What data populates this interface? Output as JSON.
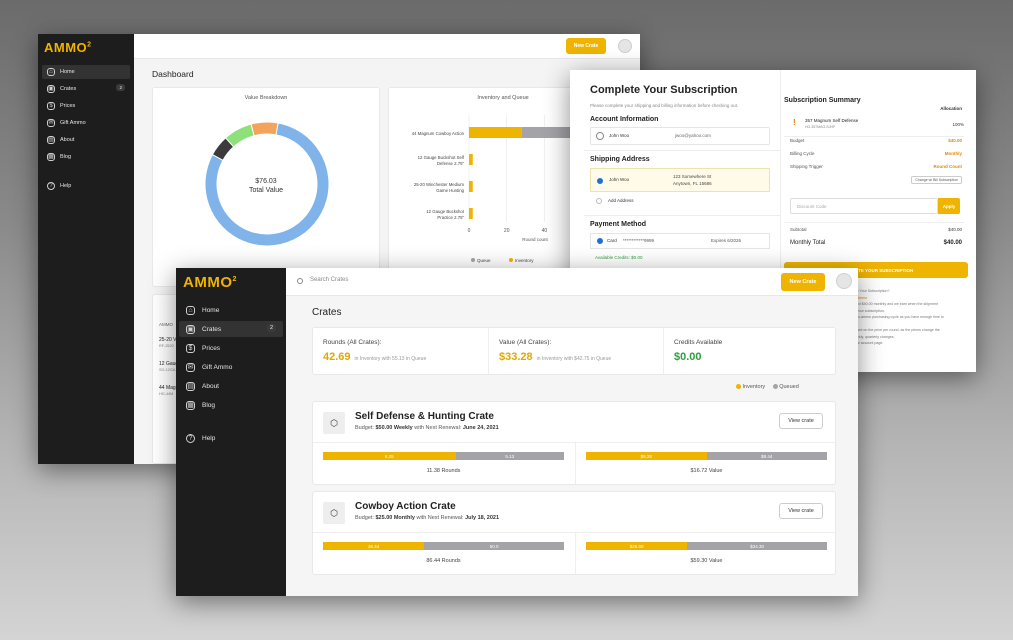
{
  "brand": "AMMO",
  "brand_mark": "2",
  "dashboard": {
    "title": "Dashboard",
    "sidebar": [
      {
        "label": "Home",
        "icon": "home-icon",
        "active": true
      },
      {
        "label": "Crates",
        "icon": "crate-icon",
        "badge": "2"
      },
      {
        "label": "Prices",
        "icon": "dollar-icon"
      },
      {
        "label": "Gift Ammo",
        "icon": "gift-icon"
      },
      {
        "label": "About",
        "icon": "book-icon"
      },
      {
        "label": "Blog",
        "icon": "news-icon"
      },
      {
        "label": "Help",
        "icon": "help-icon"
      }
    ],
    "new_crate": "New Crate",
    "value_breakdown": {
      "title": "Value Breakdown",
      "amount": "$76.03",
      "caption": "Total Value",
      "slices": [
        {
          "value": 0.8,
          "color": "#7fb3ea"
        },
        {
          "value": 0.055,
          "color": "#3b3b3b"
        },
        {
          "value": 0.075,
          "color": "#8ee07a"
        },
        {
          "value": 0.07,
          "color": "#f3a35a"
        }
      ]
    },
    "inventory_queue": {
      "title": "Inventory and Queue",
      "categories": [
        "44 Magnum Cowboy Action",
        "12 Gauge Buckshot Self Defense 2.75\"",
        "25-20 Winchester Medium Game Hunting",
        "12 Gauge Buckshot Practice 2.75\""
      ],
      "x_ticks": [
        "0",
        "20",
        "40",
        "60"
      ],
      "xlabel": "Round count",
      "legend": [
        "Queue",
        "Inventory"
      ]
    },
    "small_table": {
      "header": "AMMO",
      "rows": [
        {
          "name": "25-20 V",
          "sub": "RF-2520"
        },
        {
          "name": "12 Gaug",
          "sub": "SG-12GA"
        },
        {
          "name": "44 Mag",
          "sub": "HG-44M"
        }
      ]
    }
  },
  "subscription": {
    "title": "Complete Your Subscription",
    "subtitle": "Please complete your shipping and billing information before checking out.",
    "account_heading": "Account Information",
    "account_name": "John Woo",
    "account_email": "jwoo@yahoo.com",
    "shipping_heading": "Shipping Address",
    "ship_name": "John Woo",
    "ship_addr1": "123 Somewhere St",
    "ship_addr2": "Anytown, FL 15686",
    "add_address": "Add Address",
    "payment_heading": "Payment Method",
    "card_label": "Card",
    "card_number": "************9999",
    "card_expiry": "Expires 6/2026",
    "available_credits": "Available Credits: $0.00",
    "summary": {
      "title": "Subscription Summary",
      "allocation_label": "Allocation",
      "item_name": "357 Magnum Self Defense",
      "item_sub": "HG-357MAG-SJHP",
      "item_alloc": "100%",
      "rows": [
        {
          "label": "Budget",
          "value": "$40.00"
        },
        {
          "label": "Billing Cycle",
          "value": "Monthly"
        },
        {
          "label": "Shipping Trigger",
          "value": "Round Count"
        }
      ],
      "change_btn": "Change w/ Bill Subscription",
      "discount_placeholder": "Discount Code",
      "apply": "Apply",
      "subtotal_label": "Subtotal",
      "subtotal_value": "$40.00",
      "monthly_label": "Monthly Total",
      "monthly_value": "$40.00",
      "cta": "COMPLETE YOUR SUBSCRIPTION",
      "note_lines": [
        "...complete Your Subscription?",
        "...ch Auto Ammo",
        "...processed $40.00 monthly and we earn when the shipment",
        "...change your subscription.",
        "...each auto-ammo purchasing cycle as you have enough time to",
        "...ted",
        "...ed is based on the price per round, as the prices change the",
        "...ly, bi-weekly, quarterly changes.",
        "...us at your account page."
      ]
    }
  },
  "crates_page": {
    "search_placeholder": "Search Crates",
    "new_crate": "New Crate",
    "title": "Crates",
    "sidebar": [
      {
        "label": "Home",
        "icon": "home-icon"
      },
      {
        "label": "Crates",
        "icon": "crate-icon",
        "active": true,
        "badge": "2"
      },
      {
        "label": "Prices",
        "icon": "dollar-icon"
      },
      {
        "label": "Gift Ammo",
        "icon": "gift-icon"
      },
      {
        "label": "About",
        "icon": "book-icon"
      },
      {
        "label": "Blog",
        "icon": "news-icon"
      },
      {
        "label": "Help",
        "icon": "help-icon"
      }
    ],
    "stats": [
      {
        "label": "Rounds (All Crates):",
        "value": "42.69",
        "detail": "in Inventory with 55.13 in Queue",
        "color": "#e0a800"
      },
      {
        "label": "Value (All Crates):",
        "value": "$33.28",
        "detail": "in Inventory with $42.75 in Queue",
        "color": "#e0a800"
      },
      {
        "label": "Credits Available",
        "value": "$0.00",
        "detail": "",
        "color": "#2e9e3e"
      }
    ],
    "legend": [
      {
        "label": "Inventory",
        "color": "#efb400"
      },
      {
        "label": "Queued",
        "color": "#a3a3a8"
      }
    ],
    "crates": [
      {
        "name": "Self Defense & Hunting Crate",
        "budget_prefix": "Budget:",
        "budget": "$50.00 Weekly",
        "renewal_prefix": "with Next Renewal:",
        "renewal": "June 24, 2021",
        "view": "View crate",
        "rounds_inv": "6.25",
        "rounds_queue": "5.13",
        "rounds_inv_frac": 0.55,
        "rounds_total": "11.38 Rounds",
        "value_inv": "$8.28",
        "value_queue": "$8.44",
        "value_inv_frac": 0.5,
        "value_total": "$16.72 Value"
      },
      {
        "name": "Cowboy Action Crate",
        "budget_prefix": "Budget:",
        "budget": "$25.00 Monthly",
        "renewal_prefix": "with Next Renewal:",
        "renewal": "July 18, 2021",
        "view": "View crate",
        "rounds_inv": "36.44",
        "rounds_queue": "50.0",
        "rounds_inv_frac": 0.42,
        "rounds_total": "86.44 Rounds",
        "value_inv": "$25.00",
        "value_queue": "$34.30",
        "value_inv_frac": 0.42,
        "value_total": "$59.30 Value"
      }
    ]
  }
}
